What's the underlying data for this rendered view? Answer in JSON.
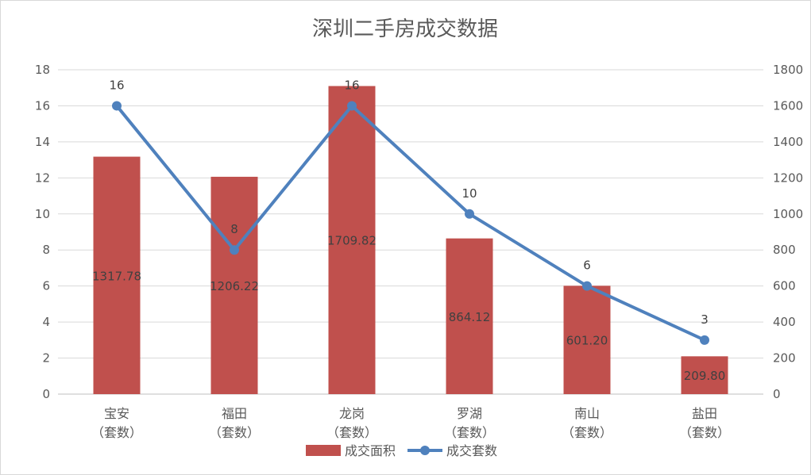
{
  "chart_data": {
    "type": "bar",
    "title": "深圳二手房成交数据",
    "categories": [
      "宝安",
      "福田",
      "龙岗",
      "罗湖",
      "南山",
      "盐田"
    ],
    "category_suffix": "（套数）",
    "series": [
      {
        "name": "成交面积",
        "type": "bar",
        "axis": "right",
        "values": [
          1317.78,
          1206.22,
          1709.82,
          864.12,
          601.2,
          209.8
        ],
        "labels": [
          "1317.78",
          "1206.22",
          "1709.82",
          "864.12",
          "601.20",
          "209.80"
        ],
        "color": "#c0504d"
      },
      {
        "name": "成交套数",
        "type": "line",
        "axis": "left",
        "values": [
          16,
          8,
          16,
          10,
          6,
          3
        ],
        "labels": [
          "16",
          "8",
          "16",
          "10",
          "6",
          "3"
        ],
        "color": "#4f81bd"
      }
    ],
    "y_left": {
      "min": 0,
      "max": 18,
      "ticks": [
        "0",
        "2",
        "4",
        "6",
        "8",
        "10",
        "12",
        "14",
        "16",
        "18"
      ]
    },
    "y_right": {
      "min": 0,
      "max": 1800,
      "ticks": [
        "0",
        "200",
        "400",
        "600",
        "800",
        "1000",
        "1200",
        "1400",
        "1600",
        "1800"
      ]
    },
    "grid": true,
    "legend_position": "bottom"
  }
}
